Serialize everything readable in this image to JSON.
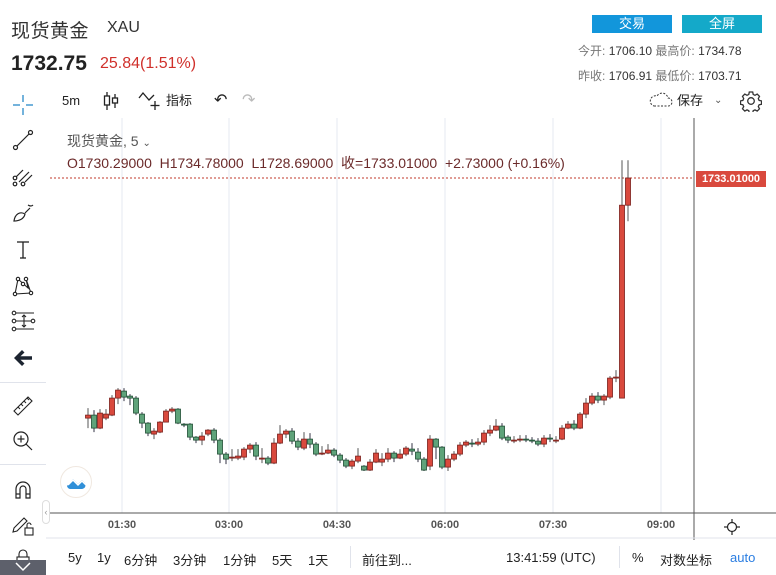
{
  "header": {
    "title": "现货黄金",
    "symbol": "XAU",
    "price": "1732.75",
    "change": "25.84(1.51%)",
    "buttons": {
      "trade": "交易",
      "fullscreen": "全屏"
    },
    "stats": {
      "open_label": "今开:",
      "open": "1706.10",
      "high_label": "最高价:",
      "high": "1734.78",
      "prev_close_label": "昨收:",
      "prev_close": "1706.91",
      "low_label": "最低价:",
      "low": "1703.71"
    }
  },
  "toolbar": {
    "interval": "5m",
    "indicators_label": "指标",
    "save_label": "保存"
  },
  "legend": {
    "series_title": "现货黄金, 5",
    "open": "O1730.29000",
    "high": "H1734.78000",
    "low": "L1728.69000",
    "close": "收=1733.01000",
    "change": "+2.73000 (+0.16%)"
  },
  "price_tag": "1733.01000",
  "colors": {
    "up": "#d9493d",
    "down": "#5fa37a",
    "up_border": "#7a1f1a",
    "down_border": "#1e4d33",
    "accent": "#2a7de1"
  },
  "x_axis": {
    "labels": [
      "01:30",
      "03:00",
      "04:30",
      "06:00",
      "07:30",
      "09:00"
    ]
  },
  "bottom_bar": {
    "ranges": [
      "5y",
      "1y",
      "6分钟",
      "3分钟",
      "1分钟",
      "5天",
      "1天"
    ],
    "goto": "前往到...",
    "time": "13:41:59 (UTC)",
    "percent": "%",
    "log": "对数坐标",
    "auto": "auto"
  },
  "chart_data": {
    "type": "candlestick",
    "title": "现货黄金, 5",
    "interval_minutes": 5,
    "x_ticks": [
      "01:30",
      "03:00",
      "04:30",
      "06:00",
      "07:30",
      "09:00"
    ],
    "last_price": 1733.01,
    "up_color": "#d9493d",
    "down_color": "#5fa37a",
    "candles": [
      [
        1709.0,
        1709.3,
        1710.0,
        1708.0
      ],
      [
        1709.3,
        1708.0,
        1709.8,
        1707.6
      ],
      [
        1708.0,
        1709.5,
        1709.9,
        1707.9
      ],
      [
        1709.0,
        1709.4,
        1709.9,
        1708.8
      ],
      [
        1709.3,
        1711.0,
        1711.3,
        1709.2
      ],
      [
        1711.0,
        1711.8,
        1712.0,
        1710.4
      ],
      [
        1711.7,
        1711.1,
        1712.0,
        1710.7
      ],
      [
        1711.2,
        1711.0,
        1711.4,
        1710.3
      ],
      [
        1711.0,
        1709.5,
        1711.2,
        1709.3
      ],
      [
        1709.4,
        1708.5,
        1709.6,
        1708.0
      ],
      [
        1708.5,
        1707.5,
        1708.6,
        1707.2
      ],
      [
        1707.4,
        1707.7,
        1708.0,
        1706.9
      ],
      [
        1707.6,
        1708.6,
        1708.7,
        1707.5
      ],
      [
        1708.6,
        1709.7,
        1709.9,
        1708.6
      ],
      [
        1709.7,
        1709.9,
        1710.1,
        1709.5
      ],
      [
        1709.9,
        1708.5,
        1710.0,
        1708.4
      ],
      [
        1708.4,
        1708.3,
        1708.5,
        1708.1
      ],
      [
        1708.4,
        1707.1,
        1708.5,
        1706.8
      ],
      [
        1707.1,
        1706.8,
        1707.2,
        1706.5
      ],
      [
        1706.8,
        1707.2,
        1707.6,
        1706.3
      ],
      [
        1707.4,
        1707.8,
        1707.9,
        1707.2
      ],
      [
        1707.8,
        1706.8,
        1708.0,
        1706.5
      ],
      [
        1706.8,
        1705.4,
        1707.0,
        1704.5
      ],
      [
        1705.4,
        1704.9,
        1705.6,
        1704.4
      ],
      [
        1705.0,
        1705.1,
        1705.9,
        1704.7
      ],
      [
        1705.0,
        1705.2,
        1705.9,
        1704.8
      ],
      [
        1705.1,
        1705.9,
        1706.1,
        1704.8
      ],
      [
        1705.9,
        1706.3,
        1706.5,
        1705.5
      ],
      [
        1706.3,
        1705.2,
        1706.6,
        1704.8
      ],
      [
        1705.0,
        1705.0,
        1706.0,
        1704.5
      ],
      [
        1705.0,
        1704.5,
        1705.2,
        1704.3
      ],
      [
        1704.5,
        1706.5,
        1707.0,
        1704.4
      ],
      [
        1706.5,
        1707.4,
        1708.3,
        1706.4
      ],
      [
        1707.4,
        1707.7,
        1707.9,
        1707.0
      ],
      [
        1707.7,
        1706.7,
        1708.0,
        1706.4
      ],
      [
        1706.7,
        1706.1,
        1707.0,
        1705.8
      ],
      [
        1706.0,
        1706.9,
        1707.6,
        1705.8
      ],
      [
        1706.9,
        1706.4,
        1707.5,
        1706.0
      ],
      [
        1706.4,
        1705.4,
        1706.6,
        1705.2
      ],
      [
        1705.5,
        1705.5,
        1706.2,
        1705.3
      ],
      [
        1705.5,
        1705.8,
        1706.4,
        1705.4
      ],
      [
        1705.8,
        1705.3,
        1706.0,
        1705.1
      ],
      [
        1705.3,
        1704.8,
        1705.5,
        1704.5
      ],
      [
        1704.8,
        1704.2,
        1705.0,
        1704.0
      ],
      [
        1704.2,
        1704.7,
        1704.9,
        1703.9
      ],
      [
        1704.7,
        1705.2,
        1706.0,
        1704.5
      ],
      [
        1704.2,
        1703.8,
        1704.3,
        1703.71
      ],
      [
        1703.8,
        1704.6,
        1704.9,
        1703.71
      ],
      [
        1704.6,
        1705.5,
        1705.9,
        1704.5
      ],
      [
        1704.6,
        1704.9,
        1705.5,
        1704.2
      ],
      [
        1704.9,
        1705.5,
        1706.0,
        1704.6
      ],
      [
        1705.5,
        1705.0,
        1705.7,
        1704.6
      ],
      [
        1705.0,
        1705.4,
        1705.9,
        1704.9
      ],
      [
        1705.4,
        1706.0,
        1706.2,
        1705.2
      ],
      [
        1705.9,
        1705.7,
        1706.5,
        1705.3
      ],
      [
        1705.6,
        1704.9,
        1706.0,
        1704.6
      ],
      [
        1704.9,
        1703.8,
        1705.1,
        1703.71
      ],
      [
        1704.2,
        1706.9,
        1707.3,
        1703.8
      ],
      [
        1706.9,
        1706.1,
        1707.0,
        1704.9
      ],
      [
        1706.1,
        1704.1,
        1706.2,
        1703.9
      ],
      [
        1704.1,
        1704.9,
        1705.3,
        1703.71
      ],
      [
        1704.9,
        1705.4,
        1705.7,
        1704.7
      ],
      [
        1705.4,
        1706.3,
        1706.6,
        1705.2
      ],
      [
        1706.3,
        1706.6,
        1706.8,
        1706.1
      ],
      [
        1706.5,
        1706.4,
        1706.9,
        1706.1
      ],
      [
        1706.4,
        1706.6,
        1707.0,
        1706.2
      ],
      [
        1706.6,
        1707.5,
        1707.8,
        1706.3
      ],
      [
        1707.5,
        1707.8,
        1708.3,
        1707.2
      ],
      [
        1707.8,
        1708.2,
        1708.9,
        1707.7
      ],
      [
        1708.2,
        1707.0,
        1708.5,
        1706.8
      ],
      [
        1707.1,
        1706.8,
        1707.3,
        1706.5
      ],
      [
        1706.8,
        1706.8,
        1707.2,
        1706.5
      ],
      [
        1706.8,
        1706.9,
        1707.3,
        1706.6
      ],
      [
        1706.9,
        1706.8,
        1707.3,
        1706.6
      ],
      [
        1706.8,
        1706.7,
        1707.1,
        1706.5
      ],
      [
        1706.7,
        1706.4,
        1707.0,
        1706.2
      ],
      [
        1706.4,
        1707.0,
        1707.3,
        1706.1
      ],
      [
        1707.0,
        1706.9,
        1707.4,
        1706.6
      ],
      [
        1706.8,
        1706.8,
        1707.2,
        1706.5
      ],
      [
        1706.9,
        1708.0,
        1708.3,
        1706.8
      ],
      [
        1708.0,
        1708.4,
        1708.7,
        1707.9
      ],
      [
        1708.4,
        1708.0,
        1708.8,
        1707.8
      ],
      [
        1708.0,
        1709.4,
        1709.6,
        1707.9
      ],
      [
        1709.4,
        1710.5,
        1711.0,
        1709.0
      ],
      [
        1710.5,
        1711.2,
        1711.5,
        1710.3
      ],
      [
        1711.2,
        1710.8,
        1711.6,
        1710.5
      ],
      [
        1710.8,
        1711.2,
        1711.4,
        1710.3
      ],
      [
        1711.1,
        1713.0,
        1713.2,
        1710.9
      ],
      [
        1713.0,
        1713.1,
        1713.8,
        1712.6
      ],
      [
        1711.0,
        1730.29,
        1734.78,
        1711.0
      ],
      [
        1730.29,
        1733.01,
        1734.78,
        1728.69
      ]
    ]
  }
}
